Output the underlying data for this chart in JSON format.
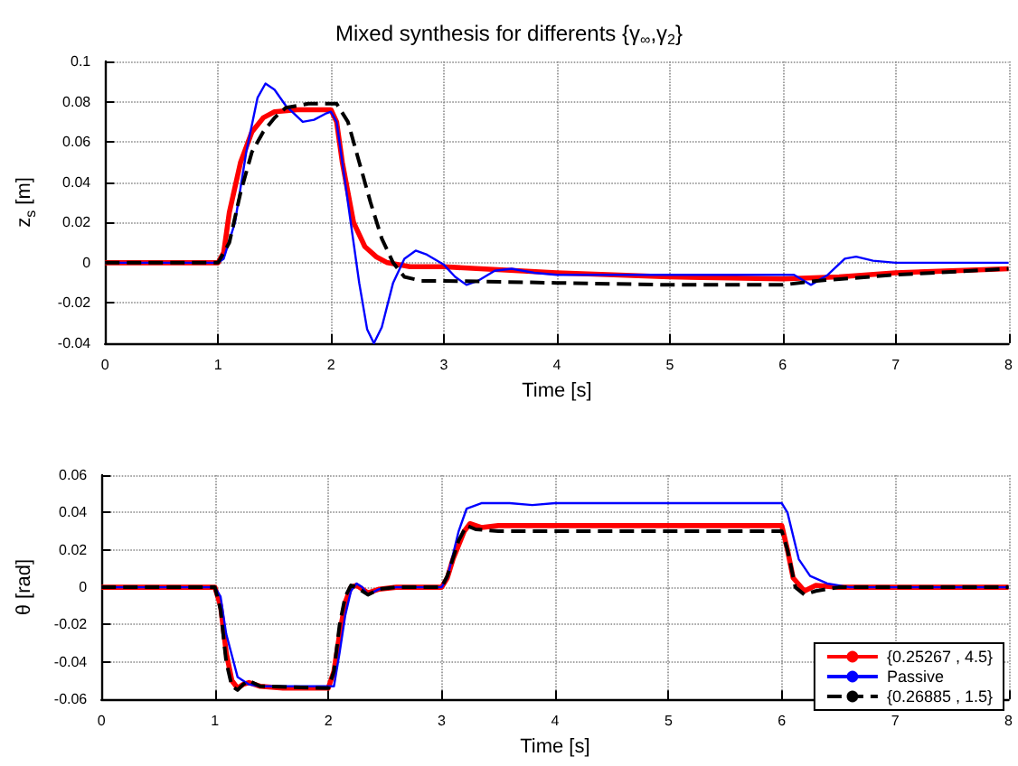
{
  "chart_data": [
    {
      "type": "line",
      "title": "Mixed synthesis for differents {γ$_{∞}$,γ$_{2}$}",
      "xlabel": "Time [s]",
      "ylabel": "z$_{s}$ [m]",
      "xlim": [
        0,
        8
      ],
      "xticks": [
        0,
        1,
        2,
        3,
        4,
        5,
        6,
        7,
        8
      ],
      "ylim": [
        -0.04,
        0.1
      ],
      "yticks": [
        -0.04,
        -0.02,
        0,
        0.02,
        0.04,
        0.06,
        0.08,
        0.1
      ],
      "grid": true,
      "marker": "none",
      "series": [
        {
          "color": "#ff0000",
          "line_style": "solid",
          "x": [
            0,
            1,
            1.05,
            1.1,
            1.2,
            1.3,
            1.4,
            1.5,
            1.7,
            2.0,
            2.05,
            2.1,
            2.2,
            2.3,
            2.4,
            2.5,
            2.7,
            3,
            4,
            5,
            6,
            6.5,
            7,
            8
          ],
          "values": [
            0,
            0,
            0.005,
            0.025,
            0.05,
            0.065,
            0.072,
            0.075,
            0.076,
            0.076,
            0.07,
            0.05,
            0.02,
            0.008,
            0.003,
            0,
            -0.002,
            -0.002,
            -0.005,
            -0.007,
            -0.008,
            -0.007,
            -0.005,
            -0.003
          ]
        },
        {
          "color": "#0000ff",
          "line_style": "solid",
          "x": [
            0,
            1,
            1.05,
            1.15,
            1.25,
            1.35,
            1.42,
            1.5,
            1.6,
            1.75,
            1.85,
            1.95,
            2.0,
            2.05,
            2.15,
            2.25,
            2.32,
            2.38,
            2.45,
            2.55,
            2.65,
            2.75,
            2.85,
            3.0,
            3.1,
            3.2,
            3.3,
            3.45,
            3.6,
            3.8,
            4,
            5,
            6.1,
            6.25,
            6.4,
            6.55,
            6.65,
            6.8,
            7,
            8
          ],
          "values": [
            0,
            0,
            0.002,
            0.02,
            0.055,
            0.082,
            0.089,
            0.086,
            0.078,
            0.07,
            0.071,
            0.074,
            0.075,
            0.07,
            0.03,
            -0.01,
            -0.033,
            -0.04,
            -0.032,
            -0.01,
            0.002,
            0.006,
            0.004,
            -0.001,
            -0.007,
            -0.011,
            -0.009,
            -0.004,
            -0.003,
            -0.005,
            -0.006,
            -0.006,
            -0.006,
            -0.011,
            -0.006,
            0.002,
            0.003,
            0.001,
            0,
            0
          ]
        },
        {
          "color": "#000000",
          "line_style": "dashed",
          "x": [
            0,
            1,
            1.1,
            1.2,
            1.3,
            1.4,
            1.5,
            1.6,
            1.8,
            2.05,
            2.15,
            2.25,
            2.35,
            2.45,
            2.55,
            2.65,
            2.8,
            3,
            4,
            5,
            6,
            6.3,
            7,
            8
          ],
          "values": [
            0,
            0,
            0.01,
            0.035,
            0.055,
            0.065,
            0.072,
            0.077,
            0.079,
            0.079,
            0.07,
            0.05,
            0.03,
            0.012,
            0,
            -0.007,
            -0.009,
            -0.009,
            -0.01,
            -0.011,
            -0.011,
            -0.009,
            -0.006,
            -0.003
          ]
        }
      ]
    },
    {
      "type": "line",
      "xlabel": "Time [s]",
      "ylabel": "θ [rad]",
      "xlim": [
        0,
        8
      ],
      "xticks": [
        0,
        1,
        2,
        3,
        4,
        5,
        6,
        7,
        8
      ],
      "ylim": [
        -0.06,
        0.06
      ],
      "yticks": [
        -0.06,
        -0.04,
        -0.02,
        0,
        0.02,
        0.04,
        0.06
      ],
      "grid": true,
      "marker": "none",
      "legend": "bottom right",
      "series": [
        {
          "name": "{0.25267 , 4.5}",
          "color": "#ff0000",
          "line_style": "solid",
          "x": [
            0,
            1,
            1.05,
            1.1,
            1.15,
            1.2,
            1.25,
            1.3,
            1.4,
            1.6,
            2,
            2.05,
            2.1,
            2.15,
            2.2,
            2.25,
            2.35,
            2.45,
            2.6,
            3,
            3.05,
            3.1,
            3.2,
            3.25,
            3.35,
            3.5,
            6,
            6.05,
            6.1,
            6.2,
            6.3,
            6.5,
            8
          ],
          "values": [
            0,
            0,
            -0.01,
            -0.035,
            -0.05,
            -0.054,
            -0.052,
            -0.051,
            -0.053,
            -0.054,
            -0.054,
            -0.045,
            -0.025,
            -0.008,
            0,
            0.001,
            -0.003,
            -0.001,
            0,
            0,
            0.005,
            0.015,
            0.03,
            0.034,
            0.032,
            0.033,
            0.033,
            0.02,
            0.005,
            -0.002,
            0.001,
            0,
            0
          ]
        },
        {
          "name": "Passive",
          "color": "#0000ff",
          "line_style": "solid",
          "x": [
            0,
            1,
            1.05,
            1.1,
            1.2,
            1.3,
            1.4,
            2.05,
            2.1,
            2.15,
            2.2,
            2.25,
            2.3,
            2.35,
            2.45,
            2.6,
            3,
            3.05,
            3.15,
            3.22,
            3.35,
            3.6,
            3.8,
            4,
            6,
            6.05,
            6.15,
            6.25,
            6.4,
            6.6,
            8
          ],
          "values": [
            0,
            0,
            -0.005,
            -0.025,
            -0.048,
            -0.052,
            -0.053,
            -0.053,
            -0.035,
            -0.015,
            -0.002,
            0.002,
            0,
            -0.004,
            -0.001,
            0,
            0,
            0.005,
            0.03,
            0.042,
            0.045,
            0.045,
            0.044,
            0.045,
            0.045,
            0.04,
            0.015,
            0.006,
            0.002,
            0,
            0
          ]
        },
        {
          "name": "{0.26885 , 1.5}",
          "color": "#000000",
          "line_style": "dashed",
          "x": [
            0,
            1,
            1.05,
            1.1,
            1.15,
            1.2,
            1.25,
            1.3,
            1.4,
            2,
            2.05,
            2.1,
            2.15,
            2.2,
            2.25,
            2.35,
            2.45,
            2.6,
            3,
            3.05,
            3.15,
            3.22,
            3.3,
            3.5,
            6,
            6.05,
            6.12,
            6.2,
            6.3,
            6.5,
            8
          ],
          "values": [
            0,
            0,
            -0.012,
            -0.04,
            -0.053,
            -0.055,
            -0.052,
            -0.05,
            -0.053,
            -0.054,
            -0.045,
            -0.02,
            -0.005,
            0.001,
            0,
            -0.004,
            -0.001,
            0,
            0,
            0.006,
            0.025,
            0.033,
            0.031,
            0.03,
            0.03,
            0.02,
            0,
            -0.004,
            -0.002,
            0,
            0
          ]
        }
      ]
    }
  ]
}
